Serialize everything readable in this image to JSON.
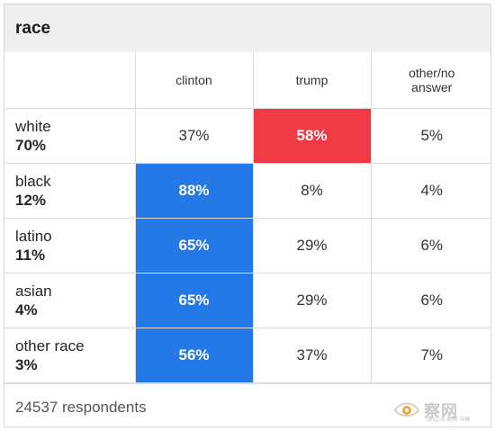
{
  "card": {
    "title": "race"
  },
  "columns": [
    "clinton",
    "trump",
    "other/no answer"
  ],
  "rows": [
    {
      "group": "white",
      "share": "70%",
      "values": [
        "37%",
        "58%",
        "5%"
      ],
      "winner": "trump"
    },
    {
      "group": "black",
      "share": "12%",
      "values": [
        "88%",
        "8%",
        "4%"
      ],
      "winner": "clinton"
    },
    {
      "group": "latino",
      "share": "11%",
      "values": [
        "65%",
        "29%",
        "6%"
      ],
      "winner": "clinton"
    },
    {
      "group": "asian",
      "share": "4%",
      "values": [
        "65%",
        "29%",
        "6%"
      ],
      "winner": "clinton"
    },
    {
      "group": "other race",
      "share": "3%",
      "values": [
        "56%",
        "37%",
        "7%"
      ],
      "winner": "clinton"
    }
  ],
  "footer": {
    "respondents": "24537 respondents"
  },
  "colors": {
    "clinton": "#2479e6",
    "trump": "#f03a45",
    "header_bg": "#efefef"
  },
  "watermark": {
    "text": "察网",
    "sub": "cwzg.cn 察网·中国",
    "icon": "eye-logo-icon"
  }
}
